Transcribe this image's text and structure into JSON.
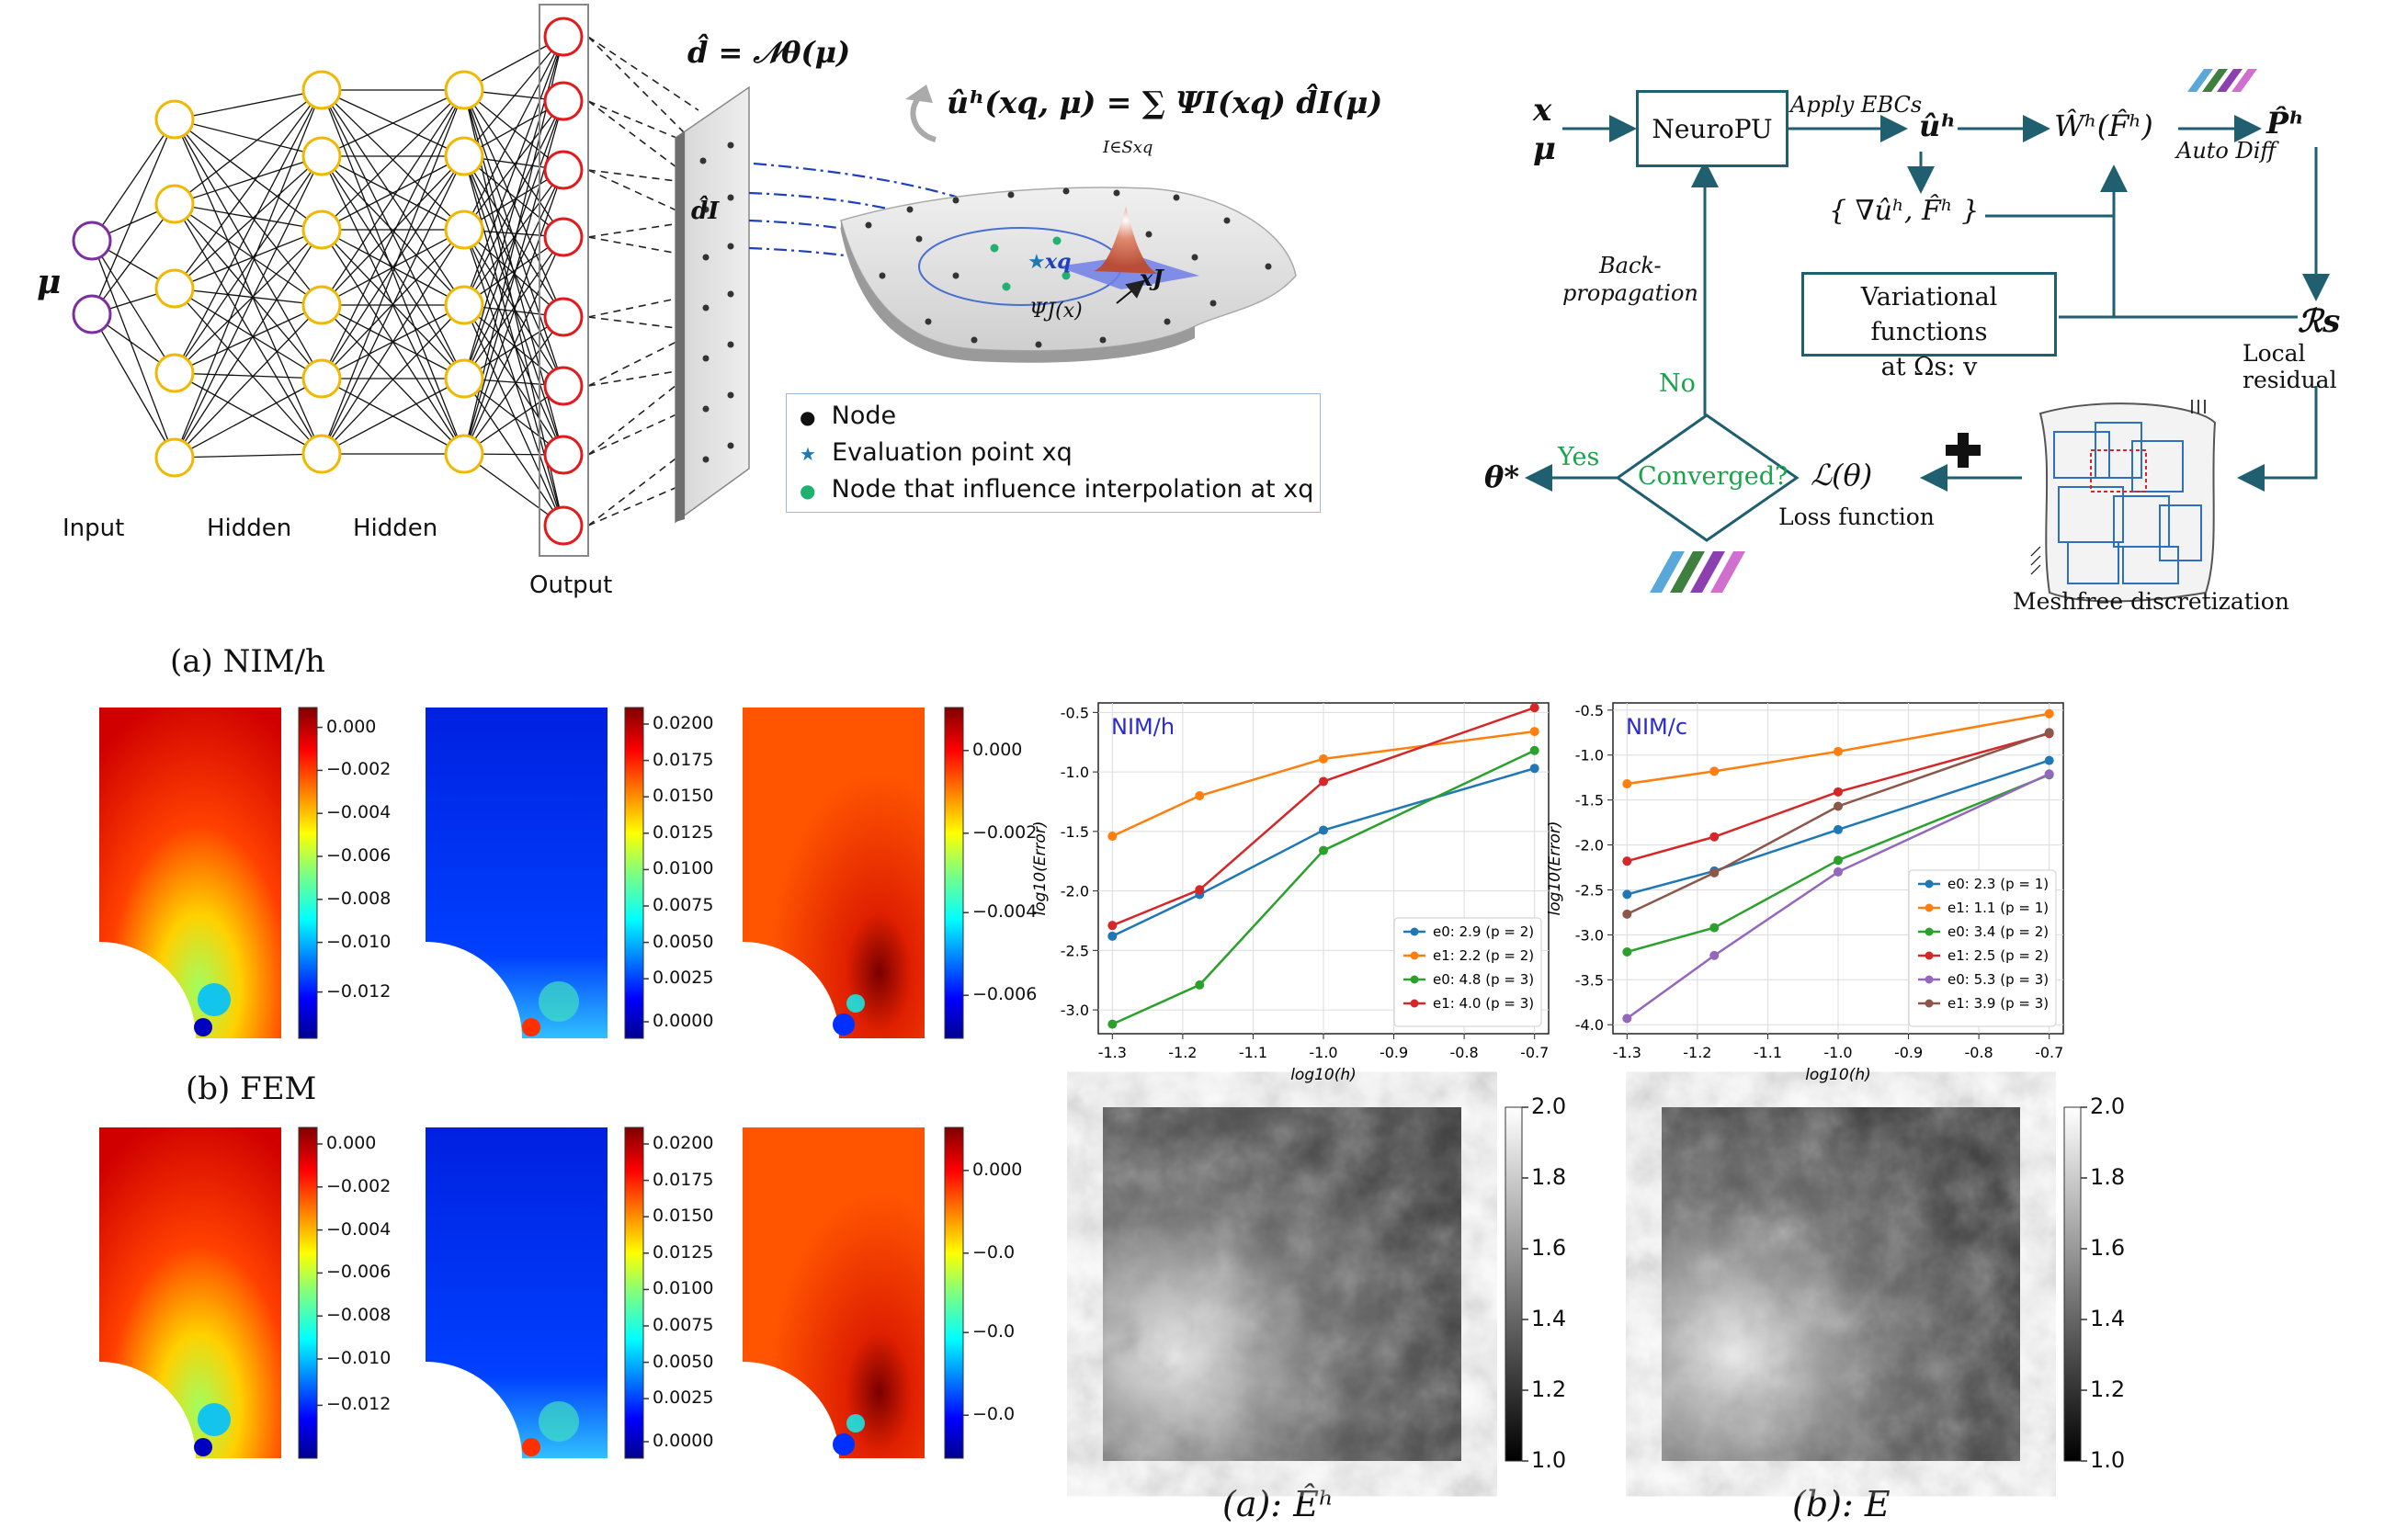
{
  "nn": {
    "input_symbol": "μ",
    "layer_labels": [
      "Input",
      "Hidden",
      "Hidden",
      "Output"
    ],
    "d_eq": "d̂ = 𝒩θ(μ)",
    "d_I": "d̂I",
    "interp_eq": "ûʰ(xq, μ) = ∑ ΨI(xq) d̂I(μ)",
    "interp_sub": "I∈Sxq",
    "psi_label": "ΨJ(x)",
    "xq_label": "xq",
    "xJ_label": "xJ",
    "legend": [
      "Node",
      "Evaluation point xq",
      "Node that influence interpolation at xq"
    ]
  },
  "flow": {
    "x": "x",
    "mu": "μ",
    "neuropu": "NeuroPU",
    "apply_ebcs": "Apply EBCs",
    "uh": "ûʰ",
    "grad": "{ ∇ûʰ, F̂ʰ }",
    "W": "Ŵʰ(F̂ʰ)",
    "autodiff": "Auto Diff",
    "P": "P̂ʰ",
    "var_line1": "Variational functions",
    "var_line2": "at Ωs: v",
    "Rs": "ℛs",
    "local_residual": "Local residual",
    "backprop1": "Back-",
    "backprop2": "propagation",
    "no": "No",
    "yes": "Yes",
    "converged": "Converged?",
    "theta_star": "θ*",
    "loss": "ℒ(θ)",
    "loss_label": "Loss function",
    "meshfree": "Meshfree discretization"
  },
  "captions": {
    "a_nim": "(a) NIM/h",
    "b_fem": "(b) FEM",
    "a_Eh": "(a):  Êʰ",
    "b_E": "(b):  E"
  },
  "colorbars": {
    "cb1": [
      "0.000",
      "−0.002",
      "−0.004",
      "−0.006",
      "−0.008",
      "−0.010",
      "−0.012"
    ],
    "cb2": [
      "0.0200",
      "0.0175",
      "0.0150",
      "0.0125",
      "0.0100",
      "0.0075",
      "0.0050",
      "0.0025",
      "0.0000"
    ],
    "cb3": [
      "0.000",
      "−0.002",
      "−0.004",
      "−0.006"
    ],
    "cb4": [
      "0.000",
      "−0.002",
      "−0.004",
      "−0.006",
      "−0.008",
      "−0.010",
      "−0.012"
    ],
    "cb5": [
      "0.0200",
      "0.0175",
      "0.0150",
      "0.0125",
      "0.0100",
      "0.0075",
      "0.0050",
      "0.0025",
      "0.0000"
    ],
    "cb6": [
      "0.000",
      "−0.0",
      "−0.0",
      "−0.0"
    ],
    "gray1": [
      "2.0",
      "1.8",
      "1.6",
      "1.4",
      "1.2",
      "1.0"
    ],
    "gray2": [
      "2.0",
      "1.8",
      "1.6",
      "1.4",
      "1.2",
      "1.0"
    ]
  },
  "chart_data": [
    {
      "type": "line",
      "title": "NIM/h",
      "xlabel": "log10(h)",
      "ylabel": "log10(Error)",
      "xlim": [
        -1.32,
        -0.68
      ],
      "ylim": [
        -3.2,
        -0.42
      ],
      "xticks": [
        "-1.3",
        "-1.2",
        "-1.1",
        "-1.0",
        "-0.9",
        "-0.8",
        "-0.7"
      ],
      "yticks": [
        "-0.5",
        "-1.0",
        "-1.5",
        "-2.0",
        "-2.5",
        "-3.0"
      ],
      "x": [
        -1.3,
        -1.176,
        -1.0,
        -0.7
      ],
      "legend_position": "lower-right",
      "series": [
        {
          "name": "e0: 2.9 (p = 2)",
          "color": "#1f77b4",
          "values": [
            -2.38,
            -2.03,
            -1.49,
            -0.97
          ]
        },
        {
          "name": "e1: 2.2 (p = 2)",
          "color": "#ff7f0e",
          "values": [
            -1.54,
            -1.2,
            -0.89,
            -0.66
          ]
        },
        {
          "name": "e0: 4.8 (p = 3)",
          "color": "#2ca02c",
          "values": [
            -3.12,
            -2.79,
            -1.66,
            -0.82
          ]
        },
        {
          "name": "e1: 4.0 (p = 3)",
          "color": "#d62728",
          "values": [
            -2.29,
            -1.99,
            -1.08,
            -0.46
          ]
        }
      ]
    },
    {
      "type": "line",
      "title": "NIM/c",
      "xlabel": "log10(h)",
      "ylabel": "log10(Error)",
      "xlim": [
        -1.32,
        -0.68
      ],
      "ylim": [
        -4.1,
        -0.42
      ],
      "xticks": [
        "-1.3",
        "-1.2",
        "-1.1",
        "-1.0",
        "-0.9",
        "-0.8",
        "-0.7"
      ],
      "yticks": [
        "-0.5",
        "-1.0",
        "-1.5",
        "-2.0",
        "-2.5",
        "-3.0",
        "-3.5",
        "-4.0"
      ],
      "x": [
        -1.3,
        -1.176,
        -1.0,
        -0.7
      ],
      "legend_position": "lower-right",
      "series": [
        {
          "name": "e0: 2.3 (p = 1)",
          "color": "#1f77b4",
          "values": [
            -2.55,
            -2.29,
            -1.83,
            -1.06
          ]
        },
        {
          "name": "e1: 1.1 (p = 1)",
          "color": "#ff7f0e",
          "values": [
            -1.32,
            -1.18,
            -0.96,
            -0.54
          ]
        },
        {
          "name": "e0: 3.4 (p = 2)",
          "color": "#2ca02c",
          "values": [
            -3.19,
            -2.92,
            -2.17,
            -1.22
          ]
        },
        {
          "name": "e1: 2.5 (p = 2)",
          "color": "#d62728",
          "values": [
            -2.18,
            -1.91,
            -1.41,
            -0.76
          ]
        },
        {
          "name": "e0: 5.3 (p = 3)",
          "color": "#9467bd",
          "values": [
            -3.93,
            -3.23,
            -2.3,
            -1.21
          ]
        },
        {
          "name": "e1: 3.9 (p = 3)",
          "color": "#8c564b",
          "values": [
            -2.77,
            -2.31,
            -1.57,
            -0.75
          ]
        }
      ]
    }
  ]
}
